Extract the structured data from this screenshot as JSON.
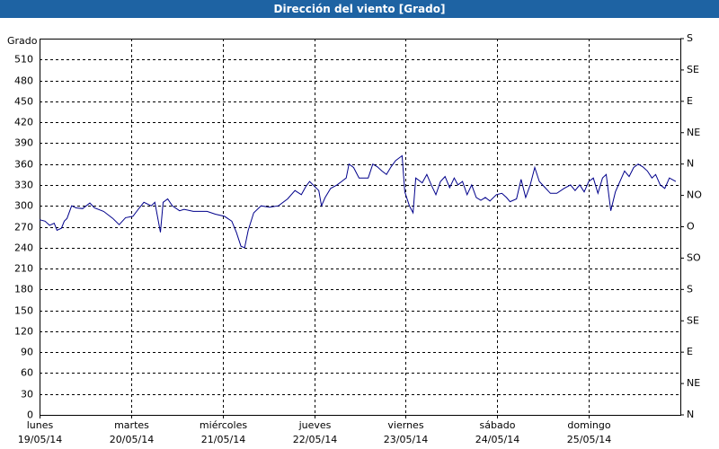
{
  "chart_data": {
    "type": "line",
    "title": "Dirección del viento [Grado]",
    "y_label": "Grado",
    "xlim": [
      0,
      7
    ],
    "xticks": [
      {
        "value": 0,
        "label": "lunes\n19/05/14"
      },
      {
        "value": 1,
        "label": "martes\n20/05/14"
      },
      {
        "value": 2,
        "label": "miércoles\n21/05/14"
      },
      {
        "value": 3,
        "label": "jueves\n22/05/14"
      },
      {
        "value": 4,
        "label": "viernes\n23/05/14"
      },
      {
        "value": 5,
        "label": "sábado\n24/05/14"
      },
      {
        "value": 6,
        "label": "domingo\n25/05/14"
      }
    ],
    "ylim": [
      0,
      540
    ],
    "yticks": [
      0,
      30,
      60,
      90,
      120,
      150,
      180,
      210,
      240,
      270,
      300,
      330,
      360,
      390,
      420,
      450,
      480,
      510
    ],
    "y2lim": [
      0,
      540
    ],
    "y2ticks": [
      {
        "value": 0,
        "label": "N"
      },
      {
        "value": 45,
        "label": "NE"
      },
      {
        "value": 90,
        "label": "E"
      },
      {
        "value": 135,
        "label": "SE"
      },
      {
        "value": 180,
        "label": "S"
      },
      {
        "value": 225,
        "label": "SO"
      },
      {
        "value": 270,
        "label": "O"
      },
      {
        "value": 315,
        "label": "NO"
      },
      {
        "value": 360,
        "label": "N"
      },
      {
        "value": 405,
        "label": "NE"
      },
      {
        "value": 450,
        "label": "E"
      },
      {
        "value": 495,
        "label": "SE"
      },
      {
        "value": 540,
        "label": "S"
      }
    ],
    "grid": true,
    "series": [
      {
        "color": "#00008b",
        "x": [
          0,
          0.06,
          0.11,
          0.16,
          0.19,
          0.24,
          0.27,
          0.3,
          0.35,
          0.4,
          0.47,
          0.55,
          0.6,
          0.7,
          0.8,
          0.87,
          0.94,
          1.02,
          1.09,
          1.14,
          1.22,
          1.26,
          1.32,
          1.35,
          1.4,
          1.45,
          1.53,
          1.58,
          1.68,
          1.83,
          1.92,
          2.02,
          2.1,
          2.15,
          2.2,
          2.24,
          2.28,
          2.34,
          2.42,
          2.51,
          2.61,
          2.71,
          2.79,
          2.86,
          2.91,
          2.95,
          3.05,
          3.08,
          3.12,
          3.18,
          3.25,
          3.3,
          3.35,
          3.38,
          3.43,
          3.49,
          3.59,
          3.64,
          3.69,
          3.74,
          3.79,
          3.84,
          3.89,
          3.96,
          3.99,
          4.04,
          4.08,
          4.11,
          4.18,
          4.23,
          4.28,
          4.33,
          4.38,
          4.43,
          4.48,
          4.53,
          4.57,
          4.62,
          4.67,
          4.72,
          4.77,
          4.82,
          4.87,
          4.92,
          4.99,
          5.05,
          5.1,
          5.14,
          5.21,
          5.26,
          5.31,
          5.36,
          5.41,
          5.46,
          5.51,
          5.58,
          5.65,
          5.73,
          5.8,
          5.85,
          5.9,
          5.95,
          6.0,
          6.05,
          6.1,
          6.15,
          6.19,
          6.24,
          6.29,
          6.34,
          6.39,
          6.44,
          6.49,
          6.54,
          6.59,
          6.64,
          6.69,
          6.73,
          6.78,
          6.83,
          6.88,
          6.95
        ],
        "values": [
          280,
          278,
          272,
          275,
          265,
          268,
          278,
          282,
          300,
          297,
          296,
          304,
          297,
          292,
          282,
          273,
          283,
          285,
          297,
          305,
          300,
          305,
          262,
          305,
          310,
          300,
          293,
          295,
          292,
          292,
          288,
          285,
          278,
          262,
          242,
          240,
          265,
          290,
          300,
          298,
          300,
          310,
          322,
          316,
          328,
          335,
          322,
          300,
          312,
          325,
          330,
          335,
          340,
          360,
          355,
          340,
          340,
          360,
          356,
          350,
          345,
          356,
          365,
          372,
          320,
          300,
          290,
          340,
          333,
          345,
          330,
          316,
          335,
          342,
          326,
          340,
          330,
          335,
          316,
          330,
          312,
          308,
          312,
          307,
          316,
          318,
          312,
          306,
          310,
          338,
          312,
          330,
          355,
          335,
          328,
          318,
          318,
          325,
          330,
          322,
          330,
          320,
          335,
          340,
          318,
          340,
          345,
          293,
          320,
          335,
          350,
          342,
          355,
          360,
          356,
          350,
          340,
          345,
          330,
          325,
          340,
          335
        ]
      }
    ]
  }
}
